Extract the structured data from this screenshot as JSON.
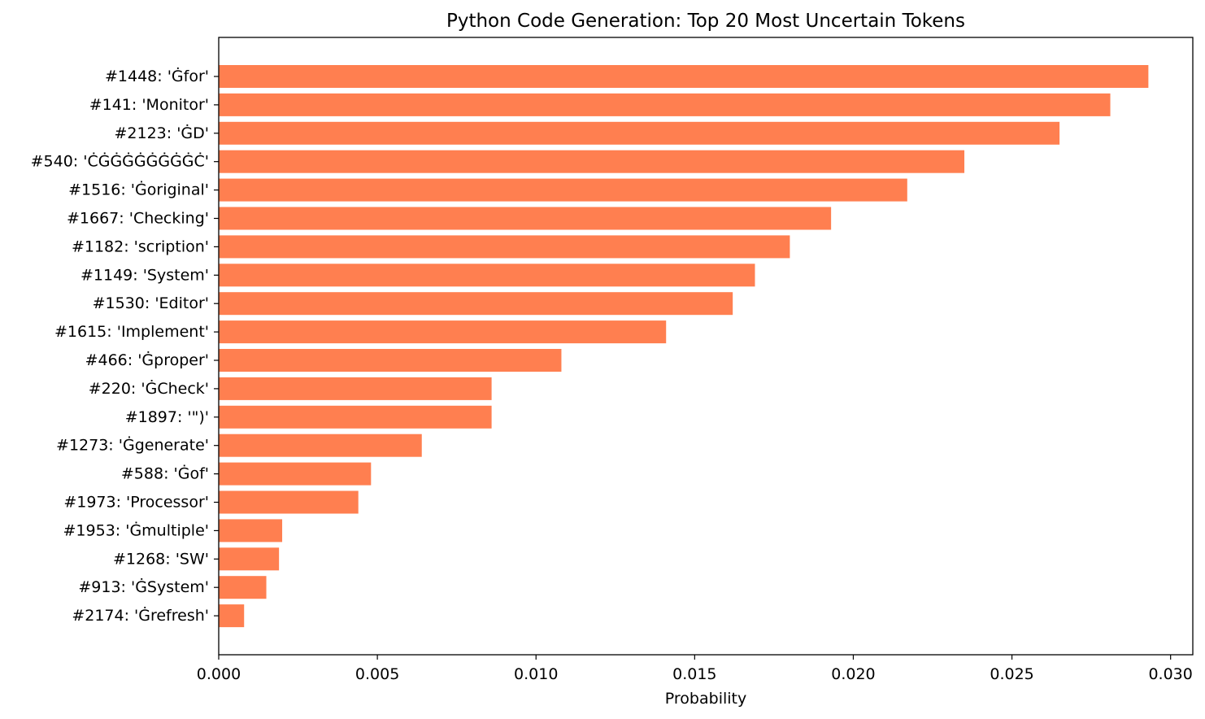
{
  "chart_data": {
    "type": "bar",
    "orientation": "horizontal",
    "title": "Python Code Generation: Top 20 Most Uncertain Tokens",
    "xlabel": "Probability",
    "ylabel": "",
    "xlim": [
      0.0,
      0.0307
    ],
    "xticks": [
      "0.000",
      "0.005",
      "0.010",
      "0.015",
      "0.020",
      "0.025",
      "0.030"
    ],
    "xtick_values": [
      0.0,
      0.005,
      0.01,
      0.015,
      0.02,
      0.025,
      0.03
    ],
    "bar_color": "#ff7f50",
    "grid": false,
    "categories": [
      "#1448: 'Ġfor'",
      "#141: 'Monitor'",
      "#2123: 'ĠD'",
      "#540: 'ĊĠĠĠĠĠĠĠĠĊ'",
      "#1516: 'Ġoriginal'",
      "#1667: 'Checking'",
      "#1182: 'scription'",
      "#1149: 'System'",
      "#1530: 'Editor'",
      "#1615: 'Implement'",
      "#466: 'Ġproper'",
      "#220: 'ĠCheck'",
      "#1897: '\")'",
      "#1273: 'Ġgenerate'",
      "#588: 'Ġof'",
      "#1973: 'Processor'",
      "#1953: 'Ġmultiple'",
      "#1268: 'SW'",
      "#913: 'ĠSystem'",
      "#2174: 'Ġrefresh'"
    ],
    "values": [
      0.0293,
      0.0281,
      0.0265,
      0.0235,
      0.0217,
      0.0193,
      0.018,
      0.0169,
      0.0162,
      0.0141,
      0.0108,
      0.0086,
      0.0086,
      0.0064,
      0.0048,
      0.0044,
      0.002,
      0.0019,
      0.0015,
      0.0008
    ]
  }
}
